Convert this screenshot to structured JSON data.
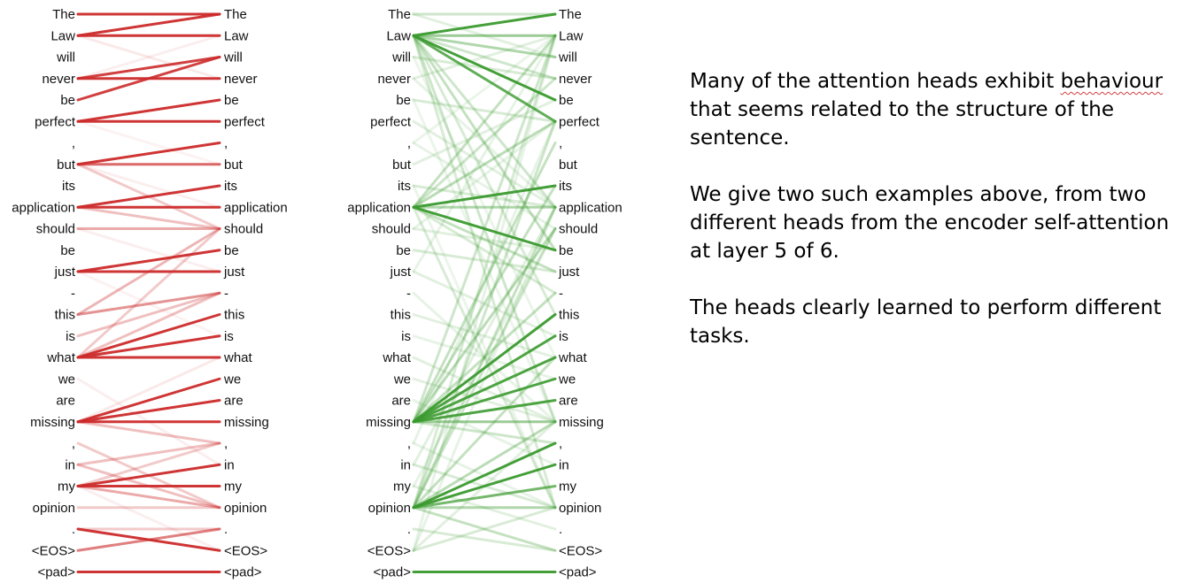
{
  "tokens": [
    "The",
    "Law",
    "will",
    "never",
    "be",
    "perfect",
    ",",
    "but",
    "its",
    "application",
    "should",
    "be",
    "just",
    "-",
    "this",
    "is",
    "what",
    "we",
    "are",
    "missing",
    ",",
    "in",
    "my",
    "opinion",
    ".",
    "<EOS>",
    "<pad>"
  ],
  "heads": [
    {
      "color": "#cc2a2a",
      "edges": [
        [
          0,
          0,
          0.95
        ],
        [
          1,
          0,
          0.95
        ],
        [
          1,
          1,
          0.95
        ],
        [
          3,
          2,
          0.9
        ],
        [
          4,
          2,
          0.9
        ],
        [
          3,
          3,
          0.95
        ],
        [
          5,
          4,
          0.95
        ],
        [
          5,
          5,
          0.95
        ],
        [
          7,
          6,
          0.95
        ],
        [
          7,
          7,
          0.7
        ],
        [
          9,
          8,
          0.95
        ],
        [
          9,
          9,
          0.95
        ],
        [
          10,
          10,
          0.4
        ],
        [
          12,
          11,
          0.95
        ],
        [
          12,
          12,
          0.95
        ],
        [
          14,
          13,
          0.5
        ],
        [
          15,
          13,
          0.3
        ],
        [
          16,
          13,
          0.3
        ],
        [
          9,
          10,
          0.3
        ],
        [
          7,
          10,
          0.25
        ],
        [
          16,
          14,
          0.95
        ],
        [
          16,
          15,
          0.95
        ],
        [
          16,
          16,
          0.95
        ],
        [
          14,
          10,
          0.35
        ],
        [
          16,
          10,
          0.25
        ],
        [
          19,
          17,
          0.95
        ],
        [
          19,
          18,
          0.95
        ],
        [
          19,
          19,
          0.95
        ],
        [
          19,
          20,
          0.3
        ],
        [
          21,
          20,
          0.3
        ],
        [
          22,
          20,
          0.25
        ],
        [
          22,
          21,
          0.95
        ],
        [
          22,
          22,
          0.95
        ],
        [
          22,
          23,
          0.4
        ],
        [
          21,
          23,
          0.3
        ],
        [
          20,
          23,
          0.25
        ],
        [
          23,
          23,
          0.25
        ],
        [
          24,
          24,
          0.25
        ],
        [
          24,
          25,
          0.95
        ],
        [
          25,
          24,
          0.6
        ],
        [
          26,
          26,
          0.95
        ],
        [
          1,
          3,
          0.1
        ],
        [
          3,
          1,
          0.08
        ],
        [
          7,
          9,
          0.08
        ],
        [
          10,
          12,
          0.08
        ],
        [
          19,
          16,
          0.1
        ],
        [
          17,
          21,
          0.08
        ],
        [
          22,
          25,
          0.08
        ],
        [
          12,
          15,
          0.06
        ],
        [
          5,
          7,
          0.06
        ]
      ]
    },
    {
      "color": "#3a9a2e",
      "edges": [
        [
          1,
          0,
          0.95
        ],
        [
          1,
          1,
          0.5
        ],
        [
          1,
          2,
          0.4
        ],
        [
          1,
          3,
          0.25
        ],
        [
          1,
          4,
          0.95
        ],
        [
          1,
          5,
          0.8
        ],
        [
          1,
          9,
          0.25
        ],
        [
          1,
          11,
          0.3
        ],
        [
          1,
          14,
          0.2
        ],
        [
          1,
          19,
          0.25
        ],
        [
          1,
          23,
          0.2
        ],
        [
          9,
          8,
          0.95
        ],
        [
          9,
          11,
          0.95
        ],
        [
          9,
          9,
          0.4
        ],
        [
          9,
          5,
          0.35
        ],
        [
          9,
          1,
          0.3
        ],
        [
          9,
          3,
          0.25
        ],
        [
          9,
          12,
          0.3
        ],
        [
          9,
          13,
          0.2
        ],
        [
          9,
          23,
          0.2
        ],
        [
          19,
          14,
          0.95
        ],
        [
          19,
          15,
          0.9
        ],
        [
          19,
          16,
          0.9
        ],
        [
          19,
          17,
          0.9
        ],
        [
          19,
          18,
          0.9
        ],
        [
          19,
          19,
          0.5
        ],
        [
          19,
          10,
          0.35
        ],
        [
          19,
          8,
          0.3
        ],
        [
          19,
          6,
          0.3
        ],
        [
          19,
          13,
          0.3
        ],
        [
          19,
          1,
          0.25
        ],
        [
          19,
          20,
          0.25
        ],
        [
          23,
          20,
          0.95
        ],
        [
          23,
          21,
          0.95
        ],
        [
          23,
          22,
          0.7
        ],
        [
          23,
          23,
          0.4
        ],
        [
          23,
          19,
          0.35
        ],
        [
          23,
          16,
          0.3
        ],
        [
          23,
          9,
          0.3
        ],
        [
          23,
          10,
          0.25
        ],
        [
          23,
          5,
          0.25
        ],
        [
          23,
          1,
          0.2
        ],
        [
          23,
          25,
          0.3
        ],
        [
          26,
          26,
          0.95
        ],
        [
          0,
          0,
          0.25
        ],
        [
          0,
          2,
          0.15
        ],
        [
          2,
          3,
          0.2
        ],
        [
          3,
          1,
          0.15
        ],
        [
          4,
          5,
          0.2
        ],
        [
          5,
          9,
          0.15
        ],
        [
          6,
          10,
          0.12
        ],
        [
          7,
          4,
          0.15
        ],
        [
          8,
          9,
          0.2
        ],
        [
          10,
          11,
          0.15
        ],
        [
          11,
          12,
          0.2
        ],
        [
          12,
          15,
          0.15
        ],
        [
          13,
          19,
          0.12
        ],
        [
          14,
          16,
          0.15
        ],
        [
          15,
          17,
          0.12
        ],
        [
          16,
          19,
          0.15
        ],
        [
          17,
          19,
          0.15
        ],
        [
          18,
          21,
          0.12
        ],
        [
          20,
          23,
          0.12
        ],
        [
          21,
          23,
          0.2
        ],
        [
          22,
          24,
          0.15
        ],
        [
          24,
          25,
          0.2
        ],
        [
          25,
          23,
          0.2
        ],
        [
          25,
          1,
          0.12
        ],
        [
          25,
          9,
          0.12
        ],
        [
          25,
          19,
          0.15
        ],
        [
          21,
          9,
          0.15
        ],
        [
          22,
          10,
          0.12
        ],
        [
          20,
          5,
          0.12
        ],
        [
          12,
          1,
          0.12
        ],
        [
          10,
          5,
          0.12
        ],
        [
          6,
          1,
          0.1
        ],
        [
          8,
          23,
          0.1
        ],
        [
          4,
          19,
          0.1
        ],
        [
          2,
          16,
          0.1
        ],
        [
          3,
          9,
          0.12
        ]
      ]
    }
  ],
  "caption": {
    "p1_before": "Many of the attention heads exhibit ",
    "p1_flagged": "behaviour",
    "p1_after": " that seems related to the structure of the sentence.",
    "p2": "We give two such examples above, from two different heads from the encoder self-attention at layer 5 of 6.",
    "p3": "The heads clearly learned to perform different tasks."
  }
}
